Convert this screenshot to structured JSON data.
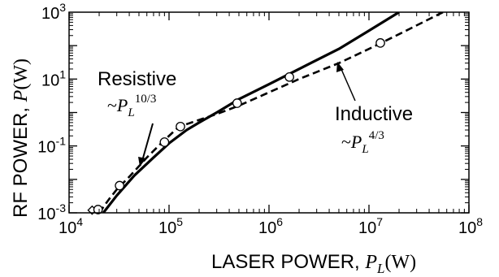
{
  "chart_data": {
    "type": "line",
    "x_scale": "log",
    "y_scale": "log",
    "xlim": [
      10000,
      100000000
    ],
    "ylim": [
      0.001,
      1000
    ],
    "x_ticks": [
      {
        "value": 10000,
        "base": "10",
        "exp": "4"
      },
      {
        "value": 100000,
        "base": "10",
        "exp": "5"
      },
      {
        "value": 1000000,
        "base": "10",
        "exp": "6"
      },
      {
        "value": 10000000,
        "base": "10",
        "exp": "7"
      },
      {
        "value": 100000000,
        "base": "10",
        "exp": "8"
      }
    ],
    "y_ticks": [
      {
        "value": 0.001,
        "base": "10",
        "exp": "-3"
      },
      {
        "value": 0.1,
        "base": "10",
        "exp": "-1"
      },
      {
        "value": 10,
        "base": "10",
        "exp": "1"
      },
      {
        "value": 1000,
        "base": "10",
        "exp": "3"
      }
    ],
    "xlabel": {
      "prefix": "LASER POWER, ",
      "var": "P",
      "sub": "L",
      "unit": "(W)"
    },
    "ylabel": {
      "prefix": "RF POWER, ",
      "var": "P",
      "unit": "(W)"
    },
    "series": [
      {
        "style": "solid",
        "x": [
          22000,
          30000,
          45000,
          70000,
          100000,
          150000,
          200000,
          300000,
          500000,
          1000000,
          2000000,
          5000000,
          10000000,
          20000000
        ],
        "y": [
          0.001,
          0.0033,
          0.013,
          0.045,
          0.12,
          0.3,
          0.5,
          1.0,
          2.5,
          7.0,
          20.0,
          80.0,
          280.0,
          1000.0
        ]
      },
      {
        "style": "dashed",
        "x": [
          20000,
          25000,
          30000,
          40000,
          60000,
          90000,
          120000,
          150000,
          200000,
          300000,
          500000,
          1000000,
          2000000,
          5000000,
          10000000,
          20000000,
          40000000,
          55000000
        ],
        "y": [
          0.001,
          0.0025,
          0.005,
          0.012,
          0.045,
          0.15,
          0.33,
          0.45,
          0.6,
          0.9,
          1.6,
          4.0,
          10.0,
          30.0,
          80.0,
          220.0,
          620.0,
          1000.0
        ]
      }
    ],
    "markers": [
      {
        "shape": "diamond",
        "x": 17000,
        "y": 0.0012
      },
      {
        "shape": "circle",
        "x": 19500,
        "y": 0.00125
      },
      {
        "shape": "circle",
        "x": 32000,
        "y": 0.0065
      },
      {
        "shape": "circle",
        "x": 90000,
        "y": 0.13
      },
      {
        "shape": "circle",
        "x": 130000,
        "y": 0.38
      },
      {
        "shape": "circle",
        "x": 480000,
        "y": 1.9
      },
      {
        "shape": "circle",
        "x": 1600000,
        "y": 11.5
      },
      {
        "shape": "circle",
        "x": 13000000,
        "y": 120
      }
    ],
    "annotations": {
      "resistive": {
        "label": "Resistive",
        "scaling_prefix": "~",
        "var": "P",
        "sub": "L",
        "power": "10/3"
      },
      "inductive": {
        "label": "Inductive",
        "scaling_prefix": "~",
        "var": "P",
        "sub": "L",
        "power": "4/3"
      }
    }
  },
  "colors": {
    "line": "#000000",
    "axis": "#000000",
    "background": "#ffffff"
  }
}
